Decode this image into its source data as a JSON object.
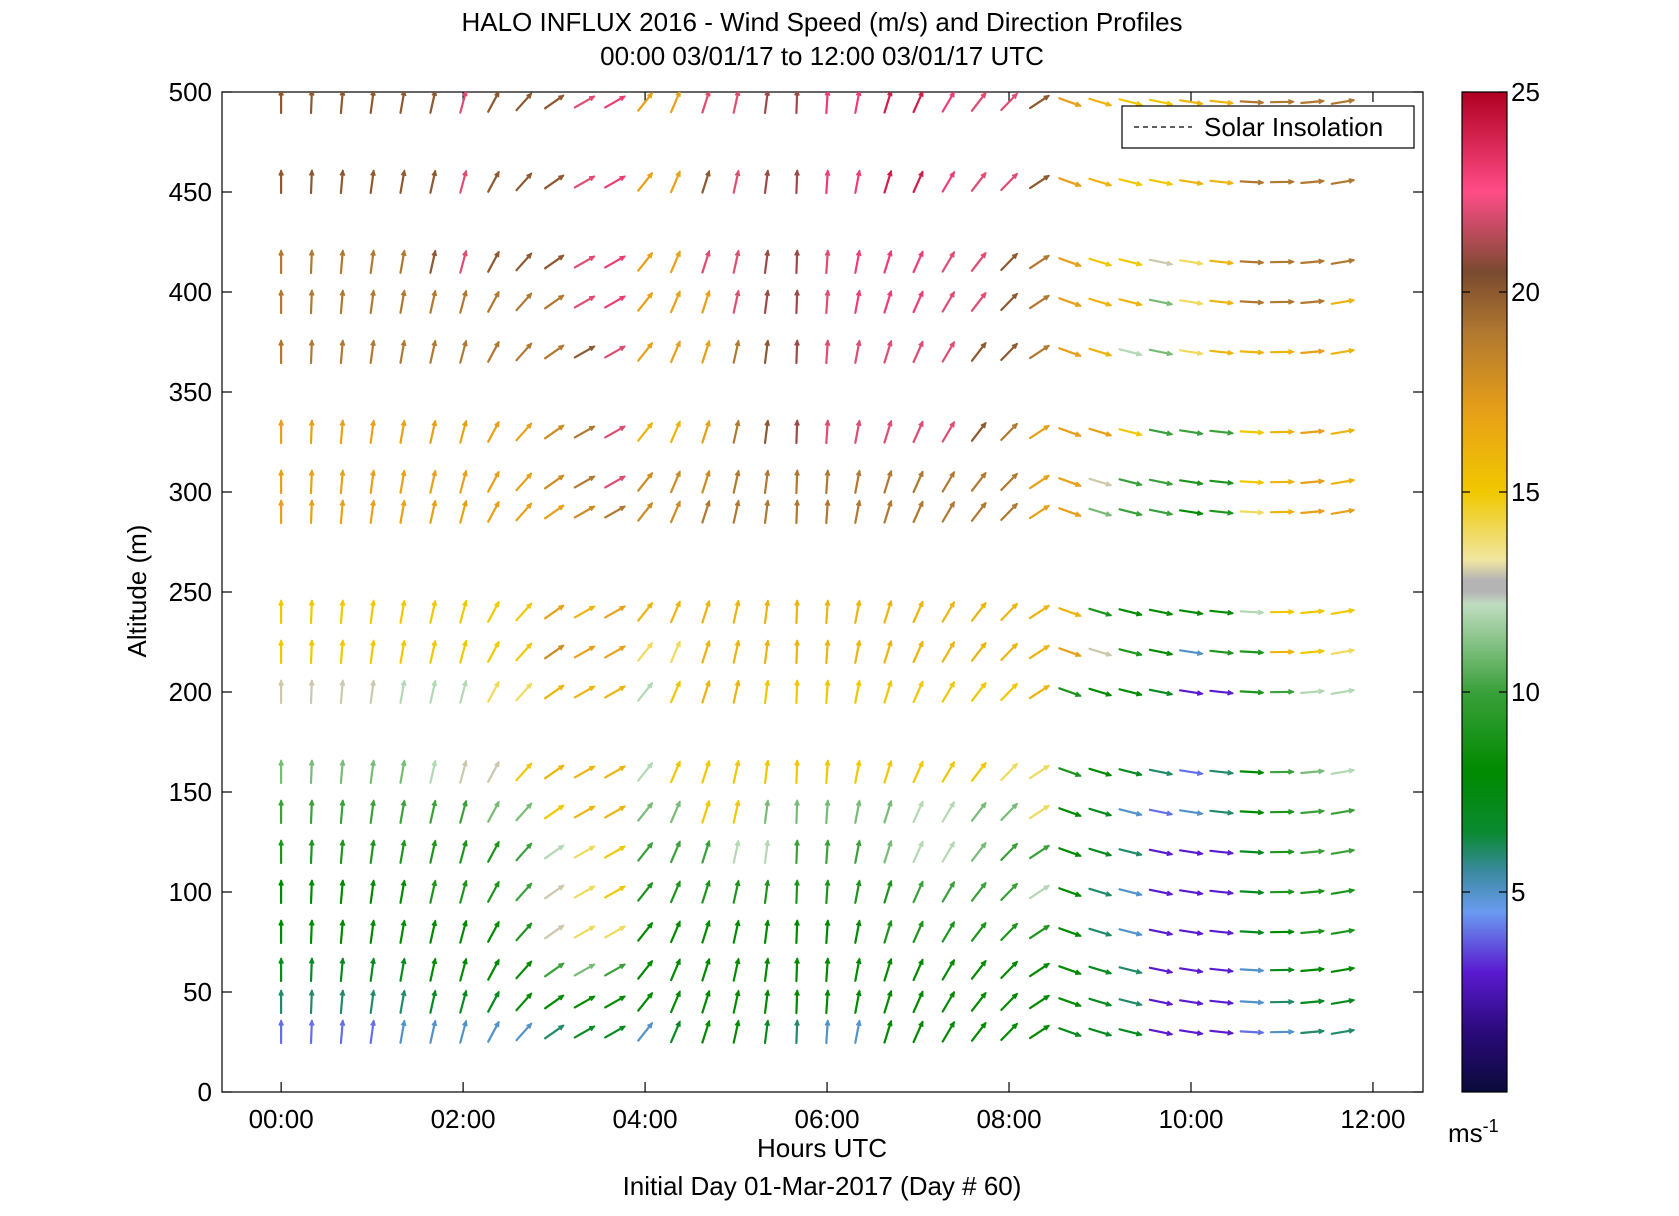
{
  "chart_data": {
    "type": "vector-field",
    "title": "HALO INFLUX 2016 - Wind Speed (m/s) and Direction Profiles",
    "subtitle": "00:00 03/01/17 to 12:00 03/01/17  UTC",
    "xlabel": "Hours UTC",
    "ylabel": "Altitude (m)",
    "footer": "Initial Day 01-Mar-2017 (Day # 60)",
    "x_unit": "hours UTC",
    "xlim": [
      -0.65,
      12.55
    ],
    "ylim": [
      0,
      500
    ],
    "x_ticks": [
      {
        "value": 0,
        "label": "00:00"
      },
      {
        "value": 2,
        "label": "02:00"
      },
      {
        "value": 4,
        "label": "04:00"
      },
      {
        "value": 6,
        "label": "06:00"
      },
      {
        "value": 8,
        "label": "08:00"
      },
      {
        "value": 10,
        "label": "10:00"
      },
      {
        "value": 12,
        "label": "12:00"
      }
    ],
    "y_ticks": [
      {
        "value": 0,
        "label": "0"
      },
      {
        "value": 50,
        "label": "50"
      },
      {
        "value": 100,
        "label": "100"
      },
      {
        "value": 150,
        "label": "150"
      },
      {
        "value": 200,
        "label": "200"
      },
      {
        "value": 250,
        "label": "250"
      },
      {
        "value": 300,
        "label": "300"
      },
      {
        "value": 350,
        "label": "350"
      },
      {
        "value": 400,
        "label": "400"
      },
      {
        "value": 450,
        "label": "450"
      },
      {
        "value": 500,
        "label": "500"
      }
    ],
    "legend": {
      "position": "top-right",
      "entries": [
        {
          "label": "Solar Insolation",
          "style": "dashed",
          "color": "#000000"
        }
      ]
    },
    "colorbar": {
      "range": [
        0,
        25
      ],
      "ticks": [
        {
          "value": 5,
          "label": "5"
        },
        {
          "value": 10,
          "label": "10"
        },
        {
          "value": 15,
          "label": "15"
        },
        {
          "value": 20,
          "label": "20"
        },
        {
          "value": 25,
          "label": "25"
        }
      ],
      "unit_base": "ms",
      "unit_exp": "-1",
      "stops": [
        {
          "v": 0,
          "c": "#0a0a3a"
        },
        {
          "v": 1.5,
          "c": "#2a0a7a"
        },
        {
          "v": 3,
          "c": "#5a1ad0"
        },
        {
          "v": 4.5,
          "c": "#6a9af0"
        },
        {
          "v": 5.5,
          "c": "#3a8aa0"
        },
        {
          "v": 6.5,
          "c": "#0a8a30"
        },
        {
          "v": 8,
          "c": "#008a00"
        },
        {
          "v": 10,
          "c": "#3aa03a"
        },
        {
          "v": 12.2,
          "c": "#c0dcc0"
        },
        {
          "v": 12.5,
          "c": "#b4b4b4"
        },
        {
          "v": 12.8,
          "c": "#b4b4b4"
        },
        {
          "v": 13.3,
          "c": "#f0e6a0"
        },
        {
          "v": 15,
          "c": "#f0c800"
        },
        {
          "v": 17,
          "c": "#e8a018"
        },
        {
          "v": 19,
          "c": "#b07830"
        },
        {
          "v": 20.5,
          "c": "#7a4a30"
        },
        {
          "v": 22.5,
          "c": "#ff4c88"
        },
        {
          "v": 25,
          "c": "#b00020"
        }
      ]
    },
    "times": [
      0,
      0.333,
      0.667,
      1,
      1.333,
      1.667,
      2,
      2.333,
      2.667,
      3,
      3.333,
      3.667,
      4,
      4.333,
      4.667,
      5,
      5.333,
      5.667,
      6,
      6.333,
      6.667,
      7,
      7.333,
      7.667,
      8,
      8.333,
      8.667,
      9,
      9.333,
      9.667,
      10,
      10.333,
      10.667,
      11,
      11.333,
      11.667
    ],
    "altitudes": [
      30,
      45,
      61,
      80,
      100,
      120,
      140,
      160,
      200,
      220,
      240,
      290,
      305,
      330,
      370,
      395,
      415,
      455,
      495
    ],
    "direction_keys": [
      {
        "t": 0,
        "d": 180
      },
      {
        "t": 2,
        "d": 195
      },
      {
        "t": 3,
        "d": 235
      },
      {
        "t": 3.6,
        "d": 245
      },
      {
        "t": 4.2,
        "d": 205
      },
      {
        "t": 5.8,
        "d": 180
      },
      {
        "t": 8.3,
        "d": 230
      },
      {
        "t": 8.6,
        "d": 290
      },
      {
        "t": 10.5,
        "d": 275
      },
      {
        "t": 11.7,
        "d": 260
      }
    ],
    "speed_grid": [
      [
        4,
        4,
        4,
        4,
        5,
        5,
        5,
        5,
        5,
        6,
        7,
        7,
        5,
        7,
        8,
        8,
        7,
        6,
        5,
        5,
        8,
        8,
        8,
        8,
        8,
        8,
        7,
        7,
        7,
        3,
        3,
        3,
        4,
        5,
        6,
        6
      ],
      [
        6,
        6,
        6,
        6,
        6,
        7,
        7,
        7,
        8,
        8,
        8,
        8,
        8,
        8,
        8,
        8,
        8,
        8,
        8,
        8,
        8,
        8,
        8,
        8,
        8,
        8,
        8,
        7,
        6,
        3,
        3,
        3,
        5,
        6,
        7,
        7
      ],
      [
        7,
        7,
        7,
        7,
        7,
        8,
        8,
        8,
        8,
        10,
        11,
        10,
        8,
        8,
        8,
        8,
        8,
        8,
        8,
        8,
        8,
        8,
        8,
        8,
        8,
        8,
        8,
        7,
        6,
        3,
        3,
        3,
        5,
        7,
        8,
        8
      ],
      [
        8,
        8,
        8,
        8,
        8,
        8,
        8,
        8,
        9,
        13,
        14,
        14,
        8,
        8,
        8,
        8,
        8,
        8,
        8,
        8,
        9,
        9,
        9,
        9,
        9,
        9,
        8,
        6,
        5,
        3,
        3,
        3,
        7,
        8,
        9,
        9
      ],
      [
        8,
        8,
        8,
        8,
        8,
        9,
        9,
        9,
        10,
        13,
        14,
        15,
        9,
        9,
        9,
        9,
        9,
        9,
        9,
        9,
        9,
        10,
        10,
        10,
        10,
        12,
        8,
        6,
        5,
        3,
        3,
        3,
        7,
        9,
        9,
        9
      ],
      [
        9,
        9,
        9,
        9,
        9,
        9,
        9,
        9,
        10,
        12,
        14,
        15,
        10,
        10,
        10,
        12,
        12,
        10,
        10,
        10,
        11,
        12,
        12,
        11,
        10,
        10,
        8,
        7,
        6,
        3,
        3,
        3,
        7,
        9,
        10,
        10
      ],
      [
        10,
        10,
        10,
        10,
        10,
        10,
        10,
        11,
        11,
        15,
        16,
        16,
        11,
        11,
        15,
        15,
        11,
        11,
        11,
        11,
        11,
        12,
        12,
        11,
        11,
        14,
        8,
        7,
        5,
        4,
        5,
        6,
        8,
        9,
        10,
        10
      ],
      [
        11,
        11,
        11,
        11,
        11,
        12,
        13,
        13,
        15,
        16,
        16,
        16,
        12,
        15,
        15,
        15,
        15,
        15,
        15,
        15,
        15,
        15,
        15,
        15,
        14,
        14,
        9,
        8,
        7,
        6,
        4,
        6,
        8,
        10,
        11,
        12
      ],
      [
        13,
        13,
        13,
        13,
        12,
        12,
        12,
        14,
        14,
        16,
        16,
        16,
        12,
        15,
        16,
        16,
        15,
        15,
        15,
        15,
        15,
        15,
        15,
        15,
        15,
        16,
        9,
        8,
        8,
        7,
        3,
        3,
        9,
        10,
        12,
        12
      ],
      [
        15,
        15,
        15,
        15,
        15,
        15,
        15,
        15,
        15,
        18,
        17,
        17,
        14,
        14,
        16,
        16,
        16,
        16,
        16,
        16,
        16,
        16,
        16,
        16,
        16,
        16,
        17,
        13,
        9,
        8,
        5,
        9,
        9,
        16,
        15,
        14
      ],
      [
        15,
        15,
        15,
        15,
        15,
        15,
        15,
        15,
        15,
        17,
        16,
        17,
        16,
        16,
        16,
        16,
        16,
        16,
        16,
        16,
        16,
        16,
        16,
        16,
        16,
        16,
        16,
        9,
        8,
        8,
        8,
        8,
        12,
        15,
        15,
        15
      ],
      [
        17,
        17,
        17,
        17,
        17,
        17,
        17,
        17,
        17,
        17,
        18,
        19,
        18,
        18,
        19,
        19,
        19,
        19,
        19,
        19,
        19,
        19,
        19,
        19,
        19,
        17,
        17,
        11,
        10,
        10,
        8,
        9,
        14,
        16,
        17,
        17
      ],
      [
        17,
        17,
        17,
        17,
        17,
        17,
        17,
        17,
        17,
        18,
        19,
        22,
        18,
        18,
        18,
        19,
        19,
        19,
        19,
        19,
        19,
        19,
        19,
        19,
        19,
        17,
        17,
        13,
        10,
        10,
        9,
        9,
        15,
        16,
        17,
        16
      ],
      [
        17,
        17,
        17,
        17,
        17,
        17,
        17,
        17,
        17,
        18,
        19,
        22,
        16,
        16,
        17,
        19,
        20,
        21,
        22,
        22,
        22,
        22,
        22,
        20,
        19,
        17,
        17,
        17,
        15,
        10,
        10,
        10,
        15,
        16,
        17,
        16
      ],
      [
        19,
        19,
        19,
        19,
        19,
        19,
        19,
        19,
        19,
        19,
        20,
        22,
        17,
        17,
        17,
        19,
        20,
        21,
        22,
        22,
        22,
        22,
        22,
        20,
        20,
        19,
        17,
        16,
        12,
        11,
        14,
        16,
        16,
        16,
        17,
        16
      ],
      [
        19,
        19,
        19,
        19,
        19,
        19,
        19,
        19,
        19,
        19,
        22,
        23,
        17,
        17,
        17,
        22,
        21,
        21,
        22,
        23,
        23,
        23,
        22,
        22,
        20,
        19,
        17,
        16,
        16,
        11,
        14,
        16,
        19,
        19,
        19,
        16
      ],
      [
        19,
        19,
        19,
        19,
        19,
        20,
        22,
        20,
        20,
        20,
        22,
        23,
        17,
        17,
        22,
        22,
        21,
        21,
        22,
        23,
        23,
        23,
        22,
        22,
        20,
        19,
        17,
        15,
        15,
        13,
        14,
        16,
        19,
        19,
        19,
        19
      ],
      [
        20,
        20,
        20,
        20,
        20,
        20,
        22,
        20,
        20,
        20,
        22,
        23,
        17,
        17,
        20,
        22,
        21,
        21,
        23,
        23,
        24,
        24,
        23,
        22,
        22,
        20,
        17,
        16,
        15,
        15,
        16,
        16,
        19,
        19,
        19,
        19
      ],
      [
        20,
        20,
        20,
        20,
        20,
        20,
        22,
        20,
        20,
        20,
        22,
        23,
        17,
        17,
        22,
        22,
        21,
        21,
        23,
        23,
        24,
        24,
        23,
        22,
        22,
        20,
        17,
        16,
        15,
        15,
        16,
        16,
        19,
        19,
        19,
        19
      ]
    ]
  }
}
